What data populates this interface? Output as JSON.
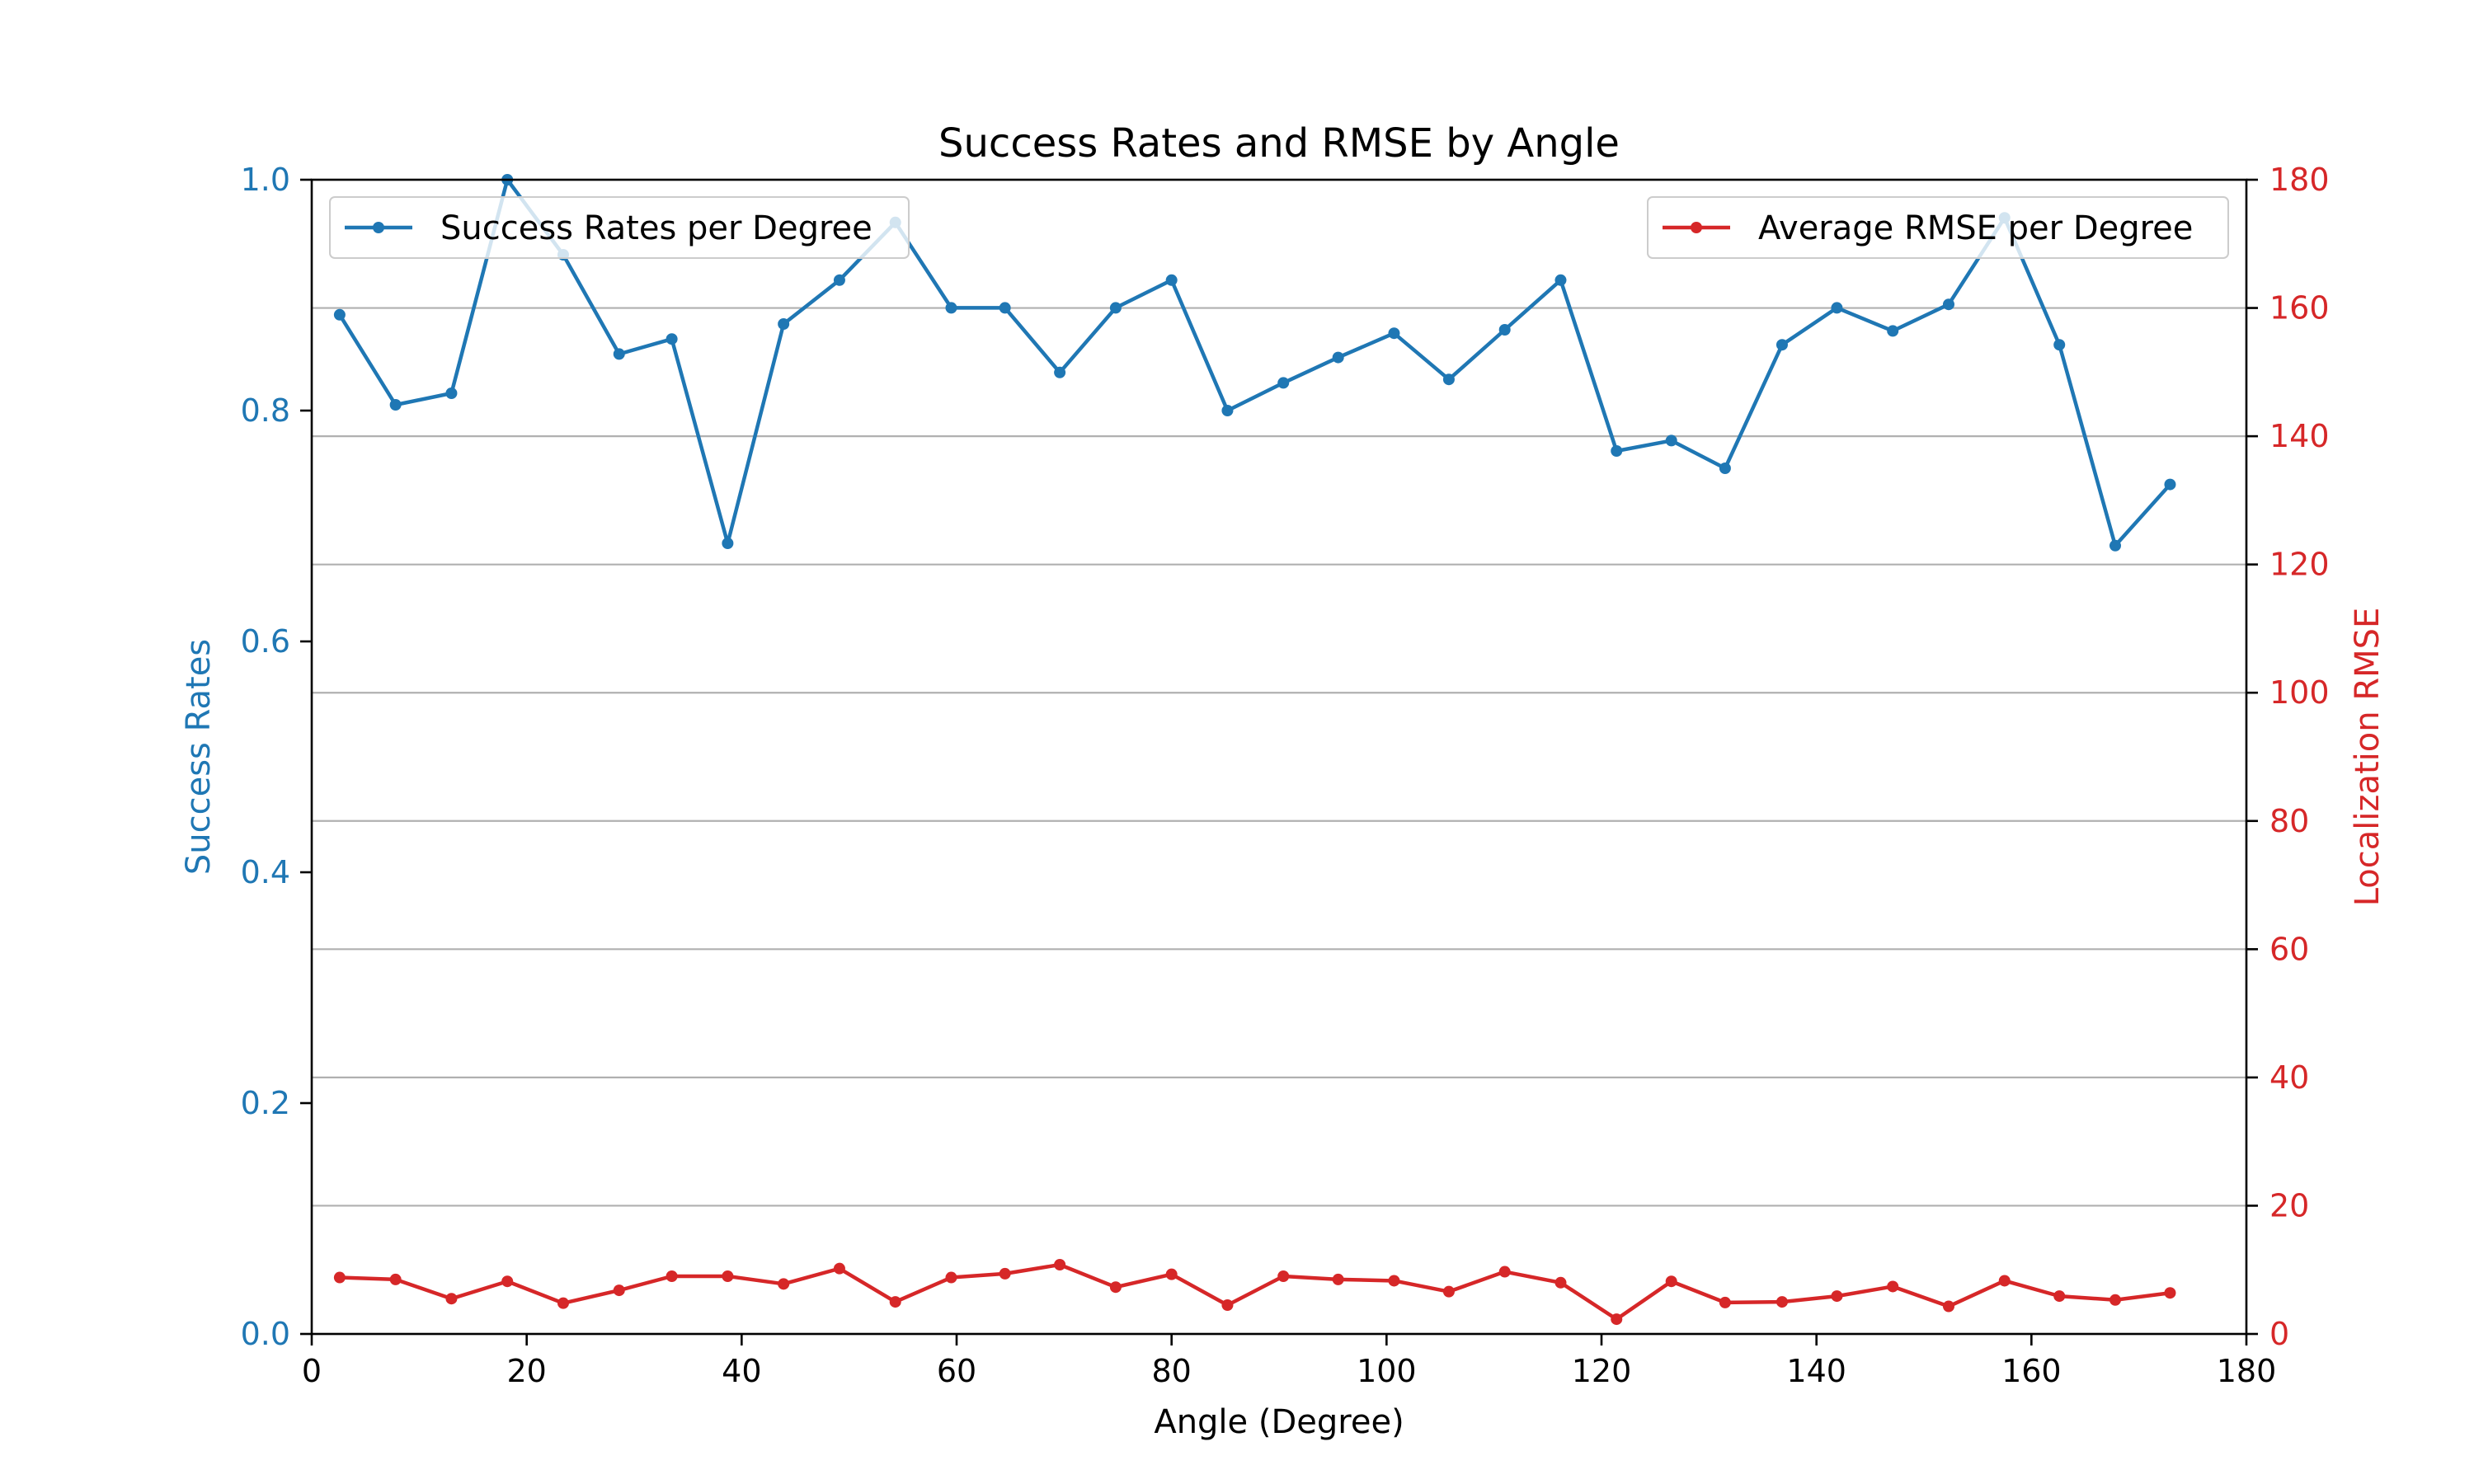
{
  "chart_data": {
    "type": "line",
    "title": "Success Rates and RMSE by Angle",
    "xlabel": "Angle (Degree)",
    "ylabel_left": "Success Rates",
    "ylabel_right": "Localization RMSE",
    "xlim": [
      0,
      180
    ],
    "ylim_left": [
      0,
      1.0
    ],
    "ylim_right": [
      0,
      180
    ],
    "x_ticks": [
      0,
      20,
      40,
      60,
      80,
      100,
      120,
      140,
      160,
      180
    ],
    "y_left_ticks": [
      "0.0",
      "0.2",
      "0.4",
      "0.6",
      "0.8",
      "1.0"
    ],
    "y_right_ticks": [
      0,
      20,
      40,
      60,
      80,
      100,
      120,
      140,
      160,
      180
    ],
    "grid": "horizontal (right axis)",
    "x": [
      2.6,
      7.8,
      13.0,
      18.2,
      23.4,
      28.6,
      33.5,
      38.7,
      43.9,
      49.1,
      54.3,
      59.5,
      64.5,
      69.6,
      74.8,
      80.0,
      85.2,
      90.4,
      95.5,
      100.7,
      105.8,
      111.0,
      116.2,
      121.4,
      126.5,
      131.5,
      136.8,
      141.9,
      147.1,
      152.3,
      157.5,
      162.6,
      167.8,
      172.9
    ],
    "series": [
      {
        "name": "Success Rates per Degree",
        "axis": "left",
        "color": "#1f77b4",
        "values": [
          0.883,
          0.805,
          0.815,
          1.0,
          0.935,
          0.849,
          0.862,
          0.685,
          0.875,
          0.913,
          0.963,
          0.889,
          0.889,
          0.833,
          0.889,
          0.913,
          0.8,
          0.824,
          0.846,
          0.867,
          0.827,
          0.87,
          0.913,
          0.765,
          0.774,
          0.75,
          0.857,
          0.889,
          0.869,
          0.892,
          0.967,
          0.857,
          0.683,
          0.736
        ]
      },
      {
        "name": "Average RMSE per Degree",
        "axis": "right",
        "color": "#d62728",
        "values": [
          8.8,
          8.5,
          5.5,
          8.2,
          4.8,
          6.8,
          9.0,
          9.0,
          7.8,
          10.2,
          5.0,
          8.8,
          9.4,
          10.8,
          7.3,
          9.3,
          4.5,
          9.0,
          8.5,
          8.3,
          6.6,
          9.7,
          8.0,
          2.3,
          8.2,
          4.9,
          5.0,
          5.9,
          7.4,
          4.3,
          8.3,
          5.9,
          5.3,
          6.4
        ]
      }
    ],
    "legends": [
      {
        "series": "Success Rates per Degree",
        "placement": "upper-left"
      },
      {
        "series": "Average RMSE per Degree",
        "placement": "upper-right"
      }
    ]
  }
}
